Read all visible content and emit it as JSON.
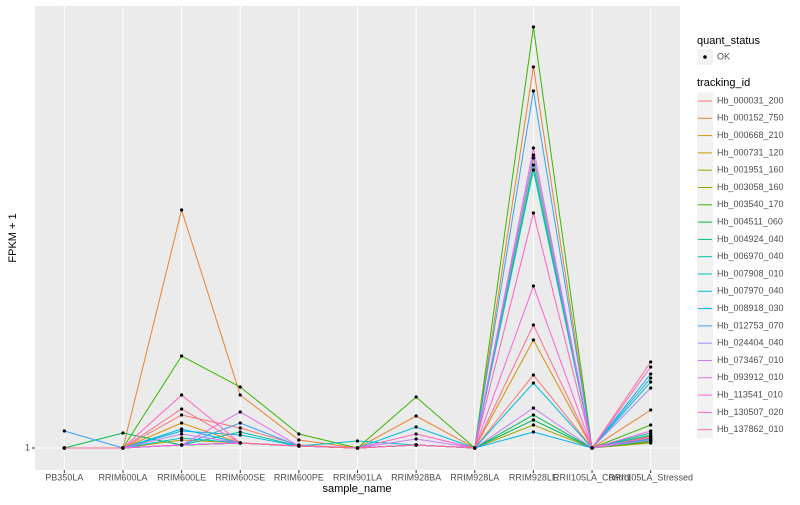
{
  "chart_data": {
    "type": "line",
    "x_label": "sample_name",
    "y_label": "FPKM + 1",
    "categories": [
      "PB350LA",
      "RRIM600LA",
      "RRIM600LE",
      "RRIM600SE",
      "RRIM600PE",
      "RRIM901LA",
      "RRIM928BA",
      "RRIM928LA",
      "RRIM928LE",
      "RRII105LA_Control",
      "RRII105LA_Stressed"
    ],
    "ylim": [
      -1.2,
      45.2
    ],
    "yticks": [
      1
    ],
    "grid": true,
    "point_color": "#000000",
    "quant_legend": {
      "title": "quant_status",
      "labels": [
        "OK"
      ]
    },
    "legend_title": "tracking_id",
    "series": [
      {
        "name": "Hb_000031_200",
        "color": "#F8766D",
        "values": [
          1,
          1,
          4.3,
          3.0,
          1.3,
          1,
          1.3,
          1,
          8.3,
          1,
          2.0
        ]
      },
      {
        "name": "Hb_000152_750",
        "color": "#EA8331",
        "values": [
          1,
          1,
          24.8,
          6.3,
          1.8,
          1,
          4.2,
          1,
          39.1,
          1,
          4.8
        ]
      },
      {
        "name": "Hb_000668_210",
        "color": "#D89000",
        "values": [
          1,
          1,
          3.5,
          1.5,
          1.2,
          1,
          1.3,
          1,
          11.8,
          1,
          1.8
        ]
      },
      {
        "name": "Hb_000731_120",
        "color": "#C09B00",
        "values": [
          1,
          1,
          1.8,
          1.5,
          1.2,
          1,
          1.3,
          1,
          30.0,
          1,
          2.2
        ]
      },
      {
        "name": "Hb_001951_160",
        "color": "#A3A500",
        "values": [
          1,
          1,
          1.3,
          1.5,
          1.2,
          1,
          1.3,
          1,
          3.3,
          1,
          1.5
        ]
      },
      {
        "name": "Hb_003058_160",
        "color": "#7CAE00",
        "values": [
          1,
          1,
          1.3,
          1.5,
          1.2,
          1,
          1.3,
          1,
          3.8,
          1,
          1.6
        ]
      },
      {
        "name": "Hb_003540_170",
        "color": "#39B600",
        "values": [
          1,
          1,
          10.2,
          7.1,
          2.4,
          1,
          6.1,
          1,
          43.1,
          1,
          3.3
        ]
      },
      {
        "name": "Hb_004511_060",
        "color": "#00BB4E",
        "values": [
          1,
          2.5,
          1.3,
          1.5,
          1.2,
          1,
          1.3,
          1,
          4.3,
          1,
          1.7
        ]
      },
      {
        "name": "Hb_004924_040",
        "color": "#00BF7D",
        "values": [
          1,
          1,
          1.3,
          1.5,
          1.2,
          1,
          1.3,
          1,
          3.8,
          1,
          2.5
        ]
      },
      {
        "name": "Hb_006970_040",
        "color": "#00C1A3",
        "values": [
          1,
          1,
          1.3,
          2.6,
          1.2,
          1,
          1.3,
          1,
          28.8,
          1,
          2.3
        ]
      },
      {
        "name": "Hb_007908_010",
        "color": "#00BFC4",
        "values": [
          1,
          1,
          2.0,
          1.5,
          1.2,
          1.7,
          1.3,
          1,
          29.3,
          1,
          7.6
        ]
      },
      {
        "name": "Hb_007970_040",
        "color": "#00BAE0",
        "values": [
          1,
          1,
          2.7,
          2.3,
          1.2,
          1,
          3.1,
          1,
          7.5,
          1,
          8.4
        ]
      },
      {
        "name": "Hb_008918_030",
        "color": "#00B0F6",
        "values": [
          1,
          1,
          2.9,
          1.5,
          1.2,
          1,
          1.3,
          1,
          2.6,
          1,
          1.9
        ]
      },
      {
        "name": "Hb_012753_070",
        "color": "#35A2FF",
        "values": [
          2.7,
          1,
          1.3,
          3.5,
          1.2,
          1,
          1.3,
          1,
          36.7,
          1,
          8.0
        ]
      },
      {
        "name": "Hb_024404_040",
        "color": "#9590FF",
        "values": [
          1,
          1,
          1.3,
          1.5,
          1.2,
          1,
          1.3,
          1,
          30.3,
          1,
          7.0
        ]
      },
      {
        "name": "Hb_073467_010",
        "color": "#C77CFF",
        "values": [
          1,
          1,
          2.4,
          1.5,
          1.2,
          1,
          1.9,
          1,
          5.0,
          1,
          1.8
        ]
      },
      {
        "name": "Hb_093912_010",
        "color": "#E76BF3",
        "values": [
          1,
          1,
          1.3,
          4.6,
          1.2,
          1,
          1.3,
          1,
          31.0,
          1,
          2.7
        ]
      },
      {
        "name": "Hb_113541_010",
        "color": "#FA62DB",
        "values": [
          1,
          1,
          1.3,
          1.5,
          1.2,
          1,
          1.3,
          1,
          17.2,
          1,
          2.1
        ]
      },
      {
        "name": "Hb_130507_020",
        "color": "#FF62BC",
        "values": [
          1,
          1,
          6.3,
          1.5,
          1.2,
          1,
          2.4,
          1,
          24.5,
          1,
          9.1
        ]
      },
      {
        "name": "Hb_137862_010",
        "color": "#FF6C91",
        "values": [
          1,
          1,
          4.9,
          1.5,
          1.2,
          1,
          1.3,
          1,
          13.3,
          1,
          9.6
        ]
      }
    ]
  }
}
